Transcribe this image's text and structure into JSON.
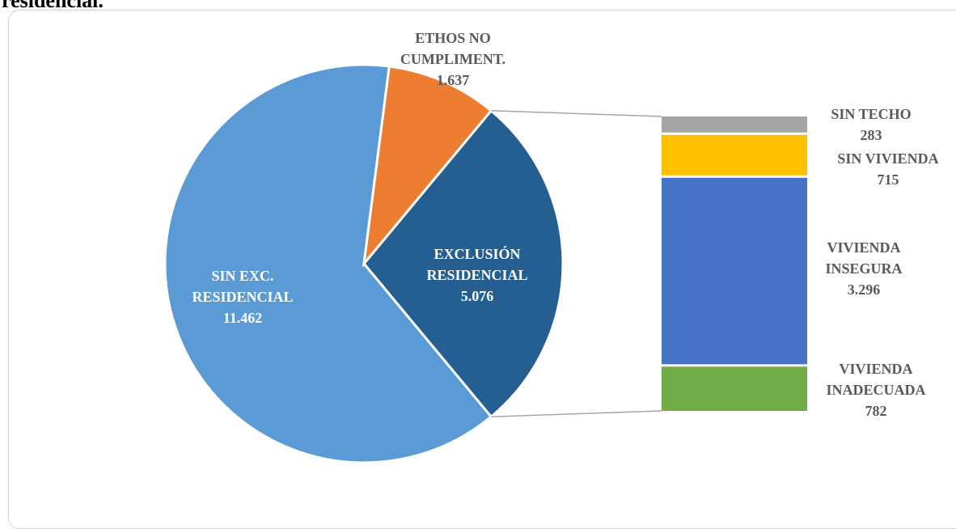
{
  "header": {
    "partial_title": "residencial."
  },
  "chart_data": {
    "type": "pie",
    "pie": {
      "slices": [
        {
          "label": [
            "SIN EXC.",
            "RESIDENCIAL"
          ],
          "value": 11462,
          "value_text": "11.462",
          "color": "#5b9bd5",
          "label_color": "#ffffff"
        },
        {
          "label": [
            "ETHOS NO",
            "CUMPLIMENT."
          ],
          "value": 1637,
          "value_text": "1.637",
          "color": "#ed7d31",
          "label_color": "#595959"
        },
        {
          "label": [
            "EXCLUSIÓN",
            "RESIDENCIAL"
          ],
          "value": 5076,
          "value_text": "5.076",
          "color": "#255e91",
          "label_color": "#ffffff"
        }
      ]
    },
    "breakdown": {
      "of": "EXCLUSIÓN RESIDENCIAL",
      "segments": [
        {
          "label": [
            "SIN TECHO"
          ],
          "value": 283,
          "value_text": "283",
          "color": "#a5a5a5"
        },
        {
          "label": [
            "SIN VIVIENDA"
          ],
          "value": 715,
          "value_text": "715",
          "color": "#ffc000"
        },
        {
          "label": [
            "VIVIENDA",
            "INSEGURA"
          ],
          "value": 3296,
          "value_text": "3.296",
          "color": "#4472c4"
        },
        {
          "label": [
            "VIVIENDA",
            "INADECUADA"
          ],
          "value": 782,
          "value_text": "782",
          "color": "#70ad47"
        }
      ]
    }
  }
}
